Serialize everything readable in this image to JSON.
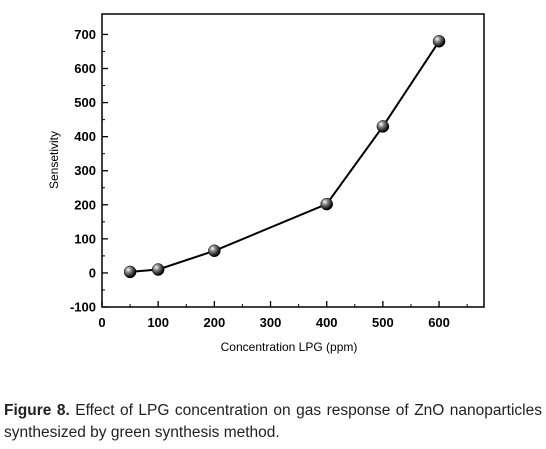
{
  "chart_data": {
    "type": "line",
    "xlabel": "Concentration  LPG (ppm)",
    "ylabel": "Sensetivity",
    "xlim": [
      0,
      680
    ],
    "ylim": [
      -100,
      760
    ],
    "xticks": [
      0,
      100,
      200,
      300,
      400,
      500,
      600
    ],
    "yticks": [
      -100,
      0,
      100,
      200,
      300,
      400,
      500,
      600,
      700
    ],
    "grid": false,
    "marker": "sphere",
    "series": [
      {
        "x": [
          50,
          100,
          200,
          400,
          500,
          600
        ],
        "y": [
          3,
          10,
          65,
          202,
          430,
          680
        ]
      }
    ]
  },
  "caption": {
    "label": "Figure 8.",
    "text": " Effect of LPG concentration on gas response of ZnO nanoparticles synthesized by green synthesis method."
  }
}
